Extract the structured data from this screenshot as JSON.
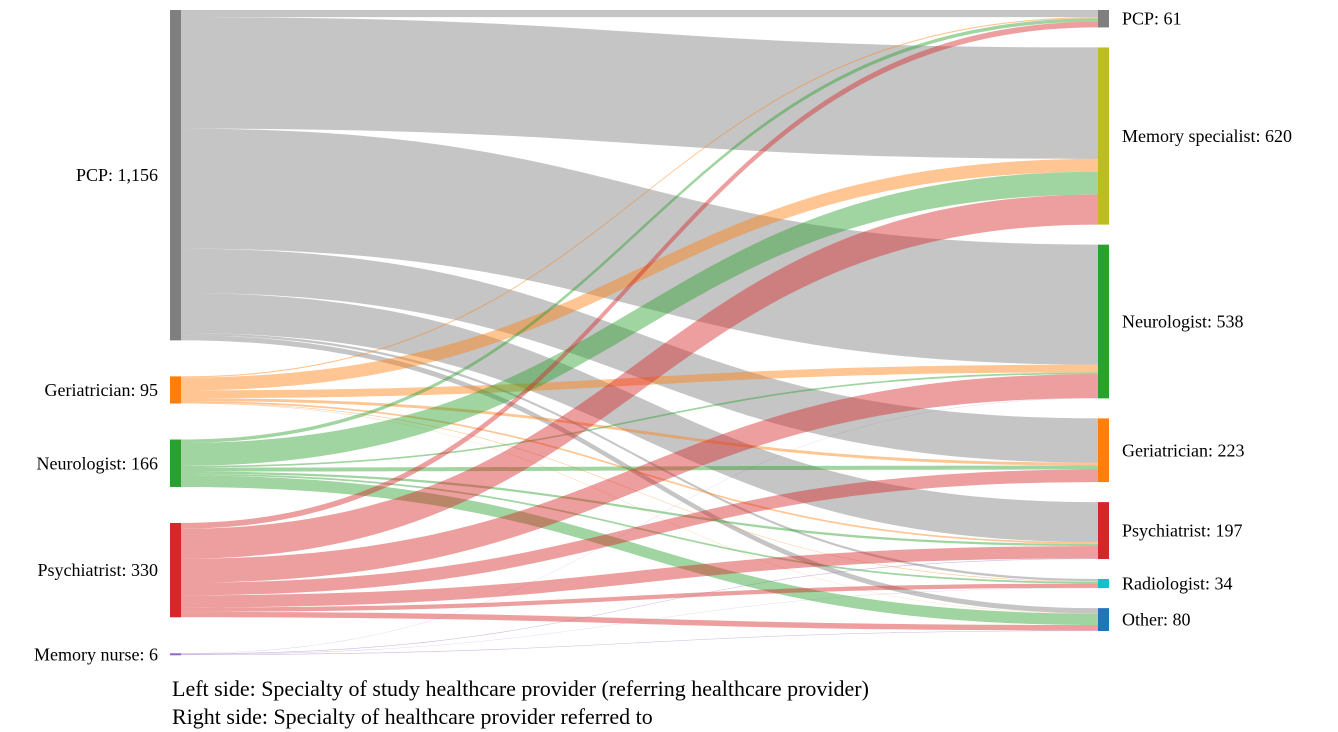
{
  "chart_data": {
    "type": "sankey",
    "sources": [
      {
        "name": "PCP",
        "value_label": "1,156",
        "value": 1156,
        "color": "#7f7f7f"
      },
      {
        "name": "Geriatrician",
        "value_label": "95",
        "value": 95,
        "color": "#ff7f0e"
      },
      {
        "name": "Neurologist",
        "value_label": "166",
        "value": 166,
        "color": "#2ca02c"
      },
      {
        "name": "Psychiatrist",
        "value_label": "330",
        "value": 330,
        "color": "#d62728"
      },
      {
        "name": "Memory nurse",
        "value_label": "6",
        "value": 6,
        "color": "#9467bd"
      }
    ],
    "targets": [
      {
        "name": "PCP",
        "value_label": "61",
        "value": 61,
        "color": "#7f7f7f"
      },
      {
        "name": "Memory specialist",
        "value_label": "620",
        "value": 620,
        "color": "#bcbd22"
      },
      {
        "name": "Neurologist",
        "value_label": "538",
        "value": 538,
        "color": "#2ca02c"
      },
      {
        "name": "Geriatrician",
        "value_label": "223",
        "value": 223,
        "color": "#ff7f0e"
      },
      {
        "name": "Psychiatrist",
        "value_label": "197",
        "value": 197,
        "color": "#d62728"
      },
      {
        "name": "Radiologist",
        "value_label": "34",
        "value": 34,
        "color": "#17becf"
      },
      {
        "name": "Other",
        "value_label": "80",
        "value": 80,
        "color": "#1f77b4"
      }
    ],
    "links": [
      {
        "source": "PCP",
        "target": "PCP",
        "value": 25
      },
      {
        "source": "PCP",
        "target": "Memory specialist",
        "value": 390
      },
      {
        "source": "PCP",
        "target": "Neurologist",
        "value": 420
      },
      {
        "source": "PCP",
        "target": "Geriatrician",
        "value": 155
      },
      {
        "source": "PCP",
        "target": "Psychiatrist",
        "value": 140
      },
      {
        "source": "PCP",
        "target": "Radiologist",
        "value": 8
      },
      {
        "source": "PCP",
        "target": "Other",
        "value": 18
      },
      {
        "source": "Geriatrician",
        "target": "PCP",
        "value": 4
      },
      {
        "source": "Geriatrician",
        "target": "Memory specialist",
        "value": 45
      },
      {
        "source": "Geriatrician",
        "target": "Neurologist",
        "value": 27
      },
      {
        "source": "Geriatrician",
        "target": "Geriatrician",
        "value": 10
      },
      {
        "source": "Geriatrician",
        "target": "Psychiatrist",
        "value": 6
      },
      {
        "source": "Geriatrician",
        "target": "Radiologist",
        "value": 2
      },
      {
        "source": "Geriatrician",
        "target": "Other",
        "value": 1
      },
      {
        "source": "Neurologist",
        "target": "PCP",
        "value": 12
      },
      {
        "source": "Neurologist",
        "target": "Memory specialist",
        "value": 80
      },
      {
        "source": "Neurologist",
        "target": "Neurologist",
        "value": 6
      },
      {
        "source": "Neurologist",
        "target": "Geriatrician",
        "value": 14
      },
      {
        "source": "Neurologist",
        "target": "Psychiatrist",
        "value": 8
      },
      {
        "source": "Neurologist",
        "target": "Radiologist",
        "value": 6
      },
      {
        "source": "Neurologist",
        "target": "Other",
        "value": 40
      },
      {
        "source": "Psychiatrist",
        "target": "PCP",
        "value": 20
      },
      {
        "source": "Psychiatrist",
        "target": "Memory specialist",
        "value": 105
      },
      {
        "source": "Psychiatrist",
        "target": "Neurologist",
        "value": 84
      },
      {
        "source": "Psychiatrist",
        "target": "Geriatrician",
        "value": 44
      },
      {
        "source": "Psychiatrist",
        "target": "Psychiatrist",
        "value": 43
      },
      {
        "source": "Psychiatrist",
        "target": "Radiologist",
        "value": 15
      },
      {
        "source": "Psychiatrist",
        "target": "Other",
        "value": 19
      },
      {
        "source": "Memory nurse",
        "target": "Neurologist",
        "value": 1
      },
      {
        "source": "Memory nurse",
        "target": "Psychiatrist",
        "value": 2
      },
      {
        "source": "Memory nurse",
        "target": "Other",
        "value": 2
      },
      {
        "source": "Memory nurse",
        "target": "Radiologist",
        "value": 1
      }
    ],
    "caption_left": "Left side: Specialty of study healthcare provider (referring healthcare provider)",
    "caption_right": "Right side: Specialty of healthcare provider referred to"
  }
}
